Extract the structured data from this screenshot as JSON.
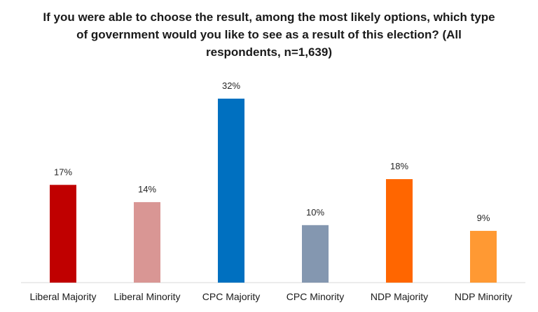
{
  "chart_data": {
    "type": "bar",
    "title": "If you were able to choose the result, among the most likely options, which type of government would you like to see as a result of this election? (All respondents, n=1,639)",
    "categories": [
      "Liberal Majority",
      "Liberal Minority",
      "CPC Majority",
      "CPC Minority",
      "NDP Majority",
      "NDP Minority"
    ],
    "values": [
      17,
      14,
      32,
      10,
      18,
      9
    ],
    "data_labels": [
      "17%",
      "14%",
      "32%",
      "10%",
      "18%",
      "9%"
    ],
    "colors": [
      "#c00000",
      "#d99694",
      "#0070c0",
      "#8497b0",
      "#ff6600",
      "#ff9933"
    ],
    "value_unit": "%",
    "xlabel": "",
    "ylabel": "",
    "ylim": [
      0,
      32
    ],
    "grid": false,
    "legend": "none"
  }
}
